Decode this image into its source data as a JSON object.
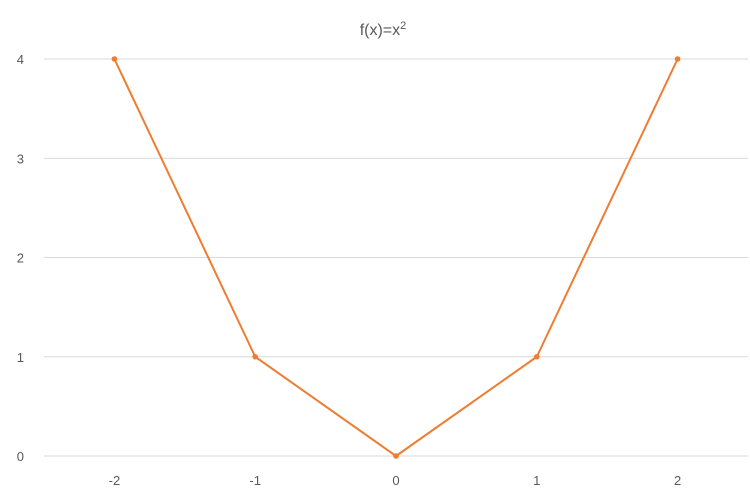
{
  "chart_data": {
    "type": "line",
    "title_base": "f(x)=x",
    "title_sup": "2",
    "categories": [
      "-2",
      "-1",
      "0",
      "1",
      "2"
    ],
    "series": [
      {
        "values": [
          4,
          1,
          0,
          1,
          4
        ],
        "color": "#ed7d31"
      }
    ],
    "ylim": [
      0,
      4
    ],
    "yticks": [
      "0",
      "1",
      "2",
      "3",
      "4"
    ],
    "grid": true,
    "legend": "none"
  }
}
